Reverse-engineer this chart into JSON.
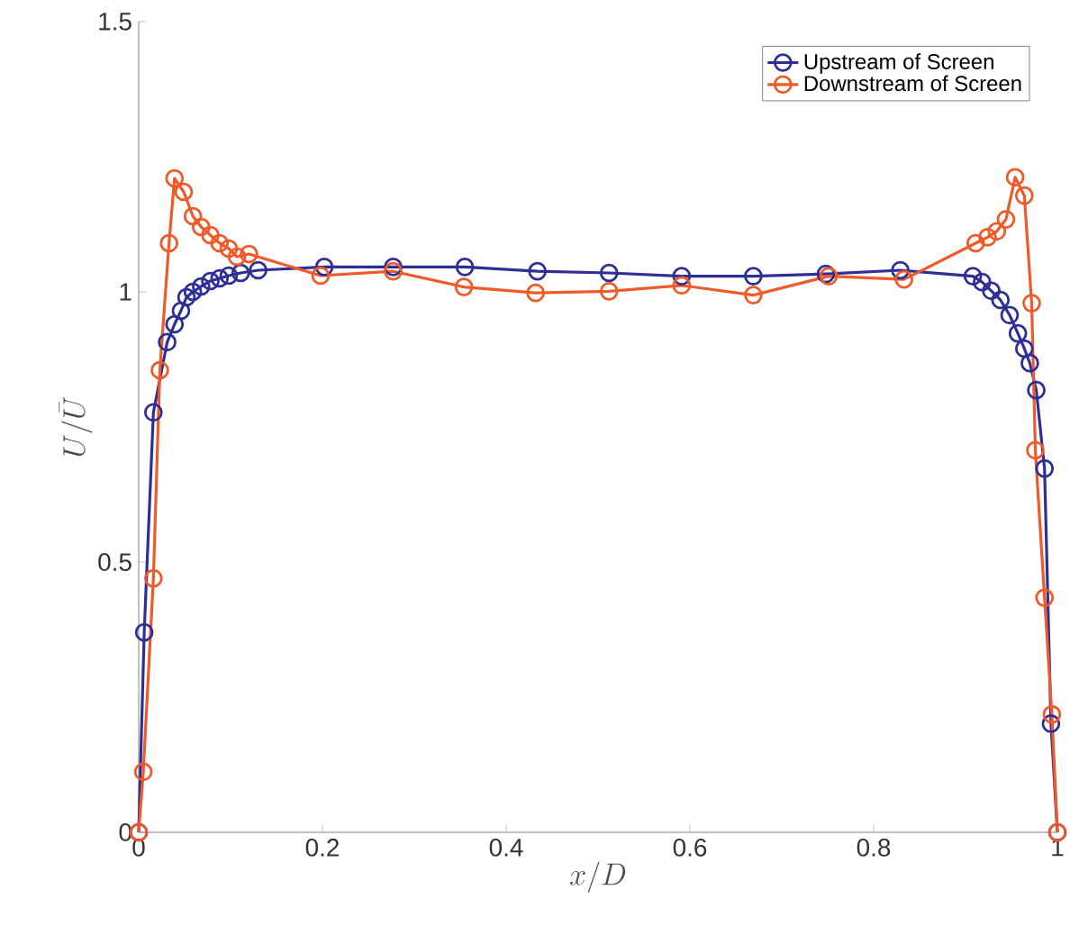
{
  "chart_data": {
    "type": "line",
    "xlabel": "x/D",
    "ylabel": "U/\\bar{U}",
    "xlim": [
      0,
      1
    ],
    "ylim": [
      0,
      1.5
    ],
    "xticks": [
      0,
      0.2,
      0.4,
      0.6,
      0.8,
      1
    ],
    "yticks": [
      0,
      0.5,
      1,
      1.5
    ],
    "marker": "circle",
    "legend": "top right",
    "grid": false,
    "series": [
      {
        "name": "Upstream of Screen",
        "color": "#2e2e96",
        "x": [
          0,
          0.006,
          0.016,
          0.031,
          0.039,
          0.046,
          0.052,
          0.059,
          0.068,
          0.078,
          0.088,
          0.098,
          0.111,
          0.13,
          0.202,
          0.277,
          0.355,
          0.434,
          0.512,
          0.591,
          0.669,
          0.748,
          0.829,
          0.908,
          0.918,
          0.928,
          0.938,
          0.948,
          0.957,
          0.964,
          0.97,
          0.977,
          0.986,
          0.993,
          1.0
        ],
        "values": [
          0,
          0.37,
          0.777,
          0.907,
          0.94,
          0.965,
          0.99,
          1.0,
          1.01,
          1.02,
          1.025,
          1.03,
          1.035,
          1.04,
          1.046,
          1.046,
          1.046,
          1.038,
          1.035,
          1.029,
          1.029,
          1.033,
          1.04,
          1.029,
          1.018,
          1.002,
          0.985,
          0.957,
          0.923,
          0.895,
          0.868,
          0.818,
          0.673,
          0.201,
          0
        ]
      },
      {
        "name": "Downstream of Screen",
        "color": "#f05a28",
        "x": [
          0,
          0.005,
          0.016,
          0.023,
          0.033,
          0.039,
          0.049,
          0.059,
          0.068,
          0.078,
          0.088,
          0.098,
          0.107,
          0.12,
          0.198,
          0.277,
          0.354,
          0.432,
          0.512,
          0.591,
          0.669,
          0.751,
          0.833,
          0.911,
          0.924,
          0.934,
          0.944,
          0.954,
          0.964,
          0.972,
          0.976,
          0.986,
          0.994,
          1.0
        ],
        "values": [
          0,
          0.112,
          0.47,
          0.855,
          1.09,
          1.21,
          1.185,
          1.14,
          1.12,
          1.105,
          1.09,
          1.08,
          1.065,
          1.07,
          1.03,
          1.038,
          1.009,
          0.998,
          1.001,
          1.012,
          0.994,
          1.029,
          1.023,
          1.09,
          1.101,
          1.112,
          1.134,
          1.212,
          1.178,
          0.979,
          0.707,
          0.434,
          0.218,
          0
        ]
      }
    ]
  }
}
